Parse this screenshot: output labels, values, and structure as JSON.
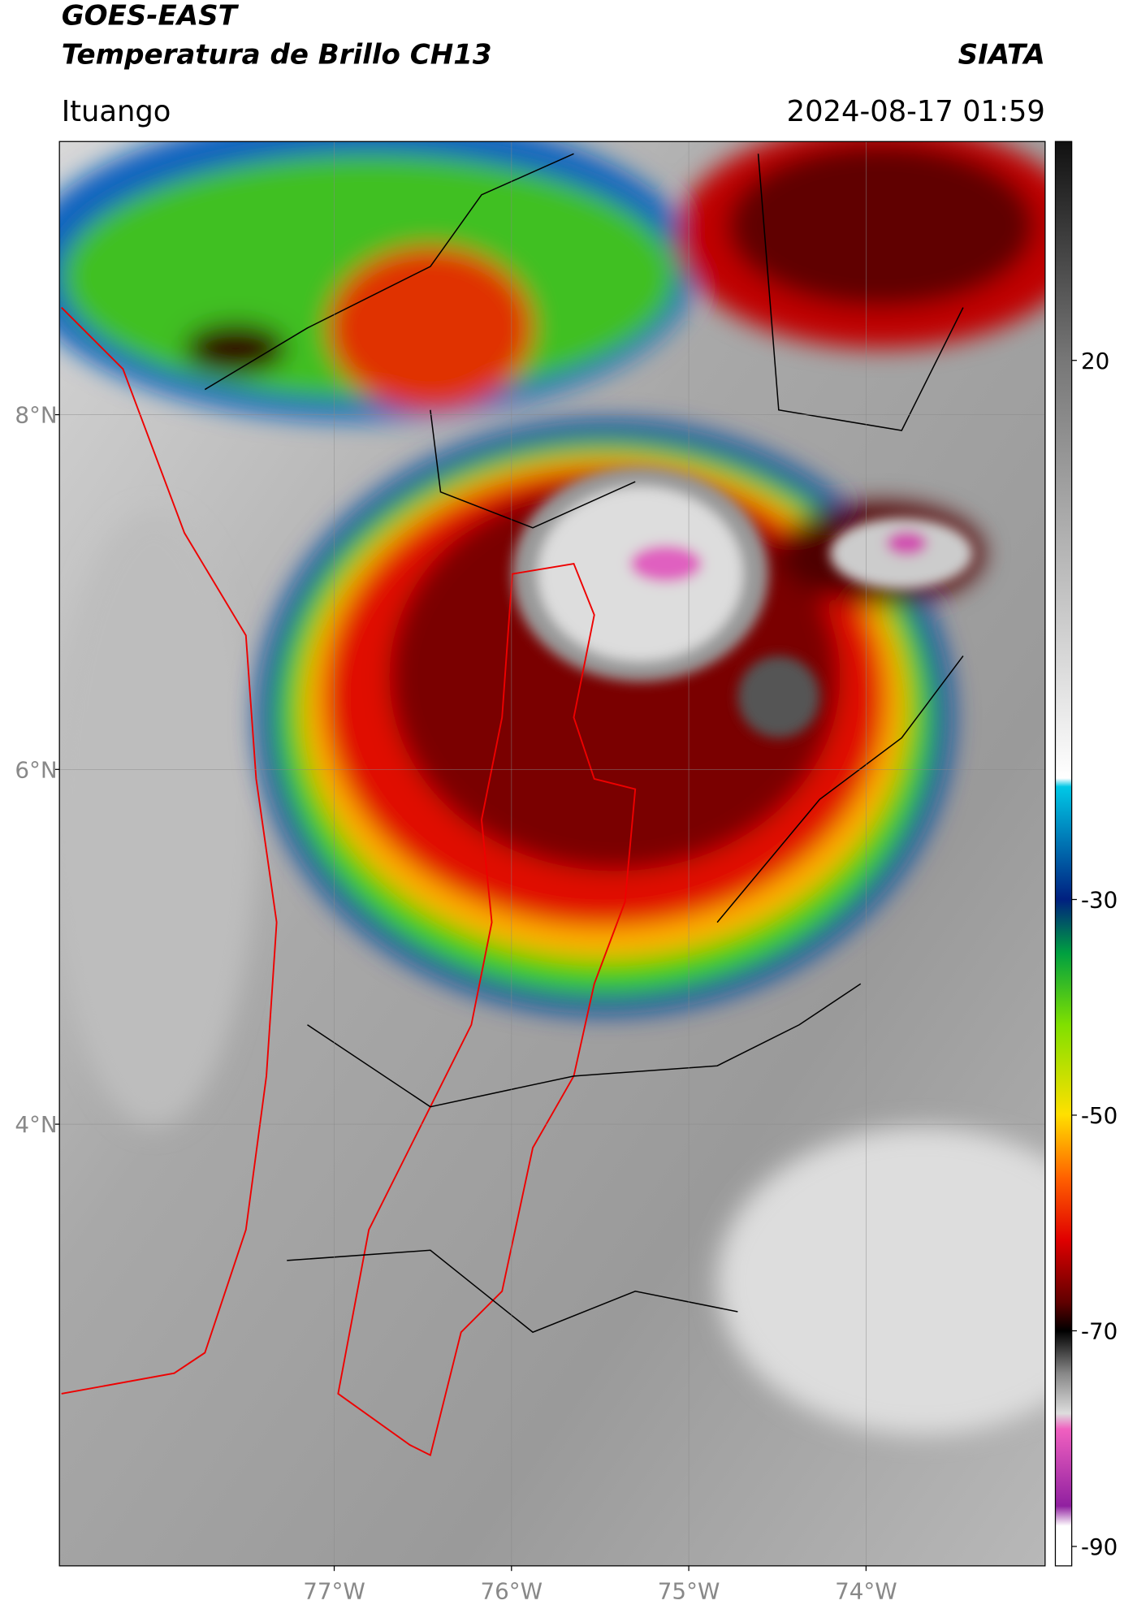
{
  "header": {
    "satellite": "GOES-EAST",
    "product": "Temperatura de Brillo CH13",
    "source": "SIATA",
    "location": "Ituango",
    "datetime": "2024-08-17 01:59"
  },
  "map": {
    "xlim": [
      -78.55,
      -72.99
    ],
    "ylim": [
      1.51,
      9.54
    ],
    "xticks": [
      {
        "value": -77,
        "label": "77°W"
      },
      {
        "value": -76,
        "label": "76°W"
      },
      {
        "value": -75,
        "label": "75°W"
      },
      {
        "value": -74,
        "label": "74°W"
      }
    ],
    "yticks": [
      {
        "value": 8,
        "label": "8°N"
      },
      {
        "value": 6,
        "label": "6°N"
      },
      {
        "value": 4,
        "label": "4°N"
      }
    ],
    "grid": true
  },
  "colorbar": {
    "clim": [
      -91.8,
      40.3
    ],
    "ticks": [
      20,
      -30,
      -50,
      -70,
      -90
    ]
  }
}
